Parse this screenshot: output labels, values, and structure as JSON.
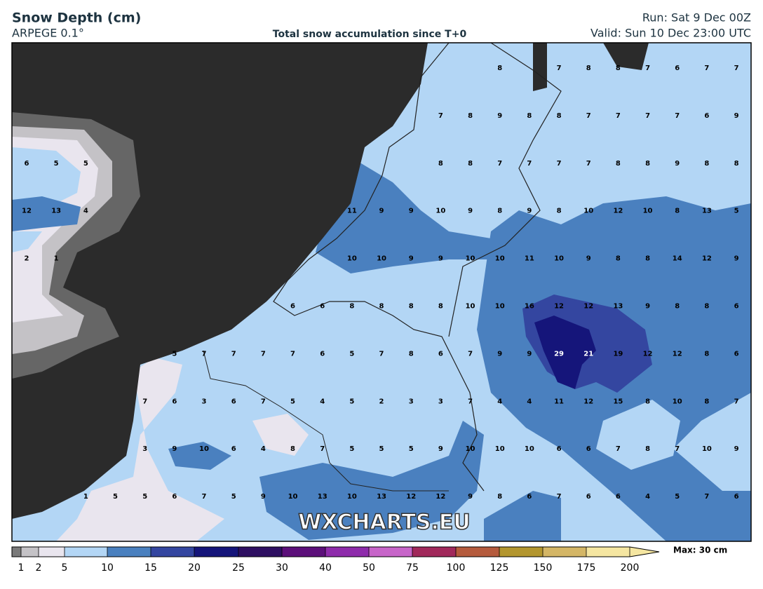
{
  "header": {
    "title": "Snow Depth (cm)",
    "model": "ARPEGE 0.1°",
    "subtitle": "Total snow accumulation since T+0",
    "run": "Run: Sat 9 Dec 00Z",
    "valid": "Valid: Sun 10 Dec 23:00 UTC"
  },
  "map": {
    "watermark": "WXCHARTS.EU",
    "grid_values": [
      [
        null,
        null,
        null,
        null,
        null,
        null,
        null,
        null,
        null,
        null,
        null,
        null,
        null,
        null,
        null,
        null,
        8,
        null,
        7,
        8,
        8,
        7,
        6,
        7,
        7
      ],
      [
        null,
        null,
        null,
        null,
        null,
        null,
        null,
        null,
        null,
        null,
        null,
        null,
        null,
        null,
        7,
        8,
        9,
        8,
        8,
        7,
        7,
        7,
        7,
        6,
        9
      ],
      [
        6,
        5,
        5,
        null,
        null,
        null,
        null,
        null,
        null,
        null,
        null,
        null,
        null,
        null,
        8,
        8,
        7,
        7,
        7,
        7,
        8,
        8,
        9,
        8,
        8
      ],
      [
        12,
        13,
        4,
        null,
        null,
        null,
        null,
        null,
        null,
        null,
        null,
        11,
        9,
        9,
        10,
        9,
        8,
        9,
        8,
        10,
        12,
        10,
        8,
        13,
        5
      ],
      [
        2,
        1,
        null,
        null,
        null,
        null,
        null,
        null,
        null,
        null,
        null,
        10,
        10,
        9,
        9,
        10,
        10,
        11,
        10,
        9,
        8,
        8,
        14,
        12,
        9
      ],
      [
        null,
        null,
        null,
        null,
        null,
        null,
        null,
        null,
        null,
        6,
        6,
        8,
        8,
        8,
        8,
        10,
        10,
        16,
        12,
        12,
        13,
        9,
        8,
        8,
        6
      ],
      [
        null,
        null,
        null,
        null,
        null,
        5,
        7,
        7,
        7,
        7,
        6,
        5,
        7,
        8,
        6,
        7,
        9,
        9,
        29,
        21,
        19,
        12,
        12,
        8,
        6
      ],
      [
        null,
        null,
        null,
        null,
        7,
        6,
        3,
        6,
        7,
        5,
        4,
        5,
        2,
        3,
        3,
        7,
        4,
        4,
        11,
        12,
        15,
        8,
        10,
        8,
        7
      ],
      [
        null,
        null,
        null,
        null,
        3,
        9,
        10,
        6,
        4,
        8,
        7,
        5,
        5,
        5,
        9,
        10,
        10,
        10,
        6,
        6,
        7,
        8,
        7,
        10,
        9
      ],
      [
        null,
        null,
        1,
        5,
        5,
        6,
        7,
        5,
        9,
        10,
        13,
        10,
        13,
        12,
        12,
        9,
        8,
        6,
        7,
        6,
        6,
        4,
        5,
        7,
        6
      ]
    ]
  },
  "colorbar": {
    "levels": [
      1,
      2,
      5,
      10,
      15,
      20,
      25,
      30,
      40,
      50,
      75,
      100,
      125,
      150,
      175,
      200
    ],
    "colors": [
      "#7a7a7a",
      "#c4c2c6",
      "#e9e5ee",
      "#b3d6f5",
      "#4a80bf",
      "#3446a0",
      "#15157a",
      "#2e0f62",
      "#5c0f7a",
      "#8e2bab",
      "#c765c9",
      "#a1295b",
      "#b55b3d",
      "#b3962e",
      "#d4b666",
      "#f5e6a1"
    ],
    "max_label": "Max: 30 cm"
  }
}
